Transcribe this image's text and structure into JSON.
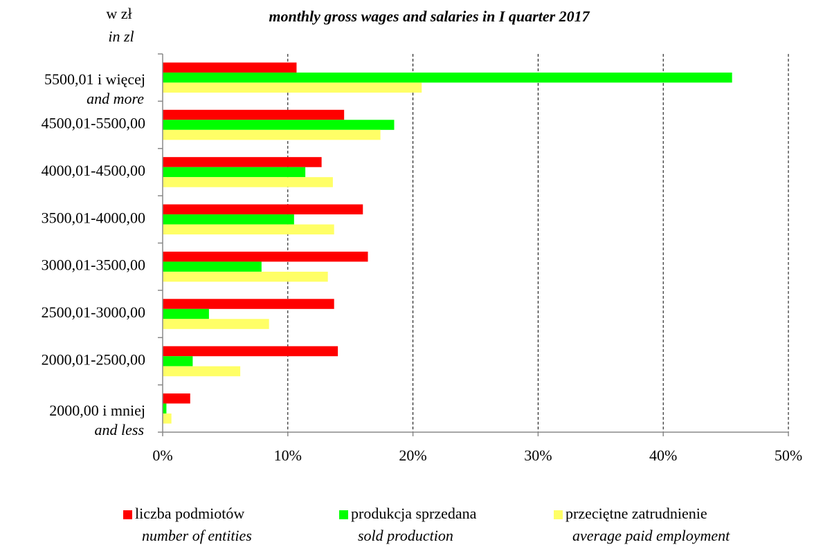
{
  "chart_data": {
    "type": "hbar",
    "title": "monthly gross wages and salaries in I quarter 2017",
    "unit_label": "w zł",
    "unit_label_en": "in zl",
    "categories": [
      "5500,01 i więcej",
      "4500,01-5500,00",
      "4000,01-4500,00",
      "3500,01-4000,00",
      "3000,01-3500,00",
      "2500,01-3000,00",
      "2000,01-2500,00",
      "2000,00 i mniej"
    ],
    "category_notes": [
      "and more",
      null,
      null,
      null,
      null,
      null,
      null,
      "and less"
    ],
    "series": [
      {
        "name": "liczba podmiotów",
        "name_en": "number of entities",
        "color": "#ff0000",
        "values": [
          10.7,
          14.5,
          12.7,
          16.0,
          16.4,
          13.7,
          14.0,
          2.2
        ]
      },
      {
        "name": "produkcja sprzedana",
        "name_en": "sold production",
        "color": "#00ff00",
        "values": [
          45.5,
          18.5,
          11.4,
          10.5,
          7.9,
          3.7,
          2.4,
          0.3
        ]
      },
      {
        "name": "przeciętne zatrudnienie",
        "name_en": "average paid employment",
        "color": "#ffff66",
        "values": [
          20.7,
          17.4,
          13.6,
          13.7,
          13.2,
          8.5,
          6.2,
          0.7
        ]
      }
    ],
    "xlim": [
      0,
      50
    ],
    "xticks": [
      {
        "value": 0,
        "label": "0%"
      },
      {
        "value": 10,
        "label": "10%"
      },
      {
        "value": 20,
        "label": "20%"
      },
      {
        "value": 30,
        "label": "30%"
      },
      {
        "value": 40,
        "label": "40%"
      },
      {
        "value": 50,
        "label": "50%"
      }
    ],
    "grid": true
  }
}
